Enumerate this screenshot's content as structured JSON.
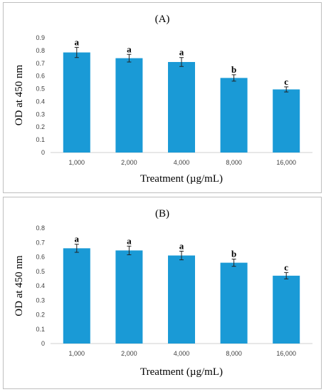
{
  "chart_data": [
    {
      "type": "bar",
      "title": "(A)",
      "xlabel": "Treatment (µg/mL)",
      "ylabel": "OD at 450 nm",
      "categories": [
        "1,000",
        "2,000",
        "4,000",
        "8,000",
        "16,000"
      ],
      "values": [
        0.785,
        0.74,
        0.71,
        0.585,
        0.495
      ],
      "errors": [
        0.04,
        0.03,
        0.035,
        0.025,
        0.02
      ],
      "labels": [
        "a",
        "a",
        "a",
        "b",
        "c"
      ],
      "ylim": [
        0,
        0.9
      ],
      "yticks": [
        "0",
        "0.1",
        "0.2",
        "0.3",
        "0.4",
        "0.5",
        "0.6",
        "0.7",
        "0.8",
        "0.9"
      ],
      "grid": false,
      "color": "#1a9ad6"
    },
    {
      "type": "bar",
      "title": "(B)",
      "xlabel": "Treatment (µg/mL)",
      "ylabel": "OD at 450 nm",
      "categories": [
        "1,000",
        "2,000",
        "4,000",
        "8,000",
        "16,000"
      ],
      "values": [
        0.66,
        0.645,
        0.61,
        0.56,
        0.47
      ],
      "errors": [
        0.028,
        0.03,
        0.03,
        0.025,
        0.022
      ],
      "labels": [
        "a",
        "a",
        "a",
        "b",
        "c"
      ],
      "ylim": [
        0,
        0.8
      ],
      "yticks": [
        "0",
        "0.1",
        "0.2",
        "0.3",
        "0.4",
        "0.5",
        "0.6",
        "0.7",
        "0.8"
      ],
      "grid": false,
      "color": "#1a9ad6"
    }
  ]
}
